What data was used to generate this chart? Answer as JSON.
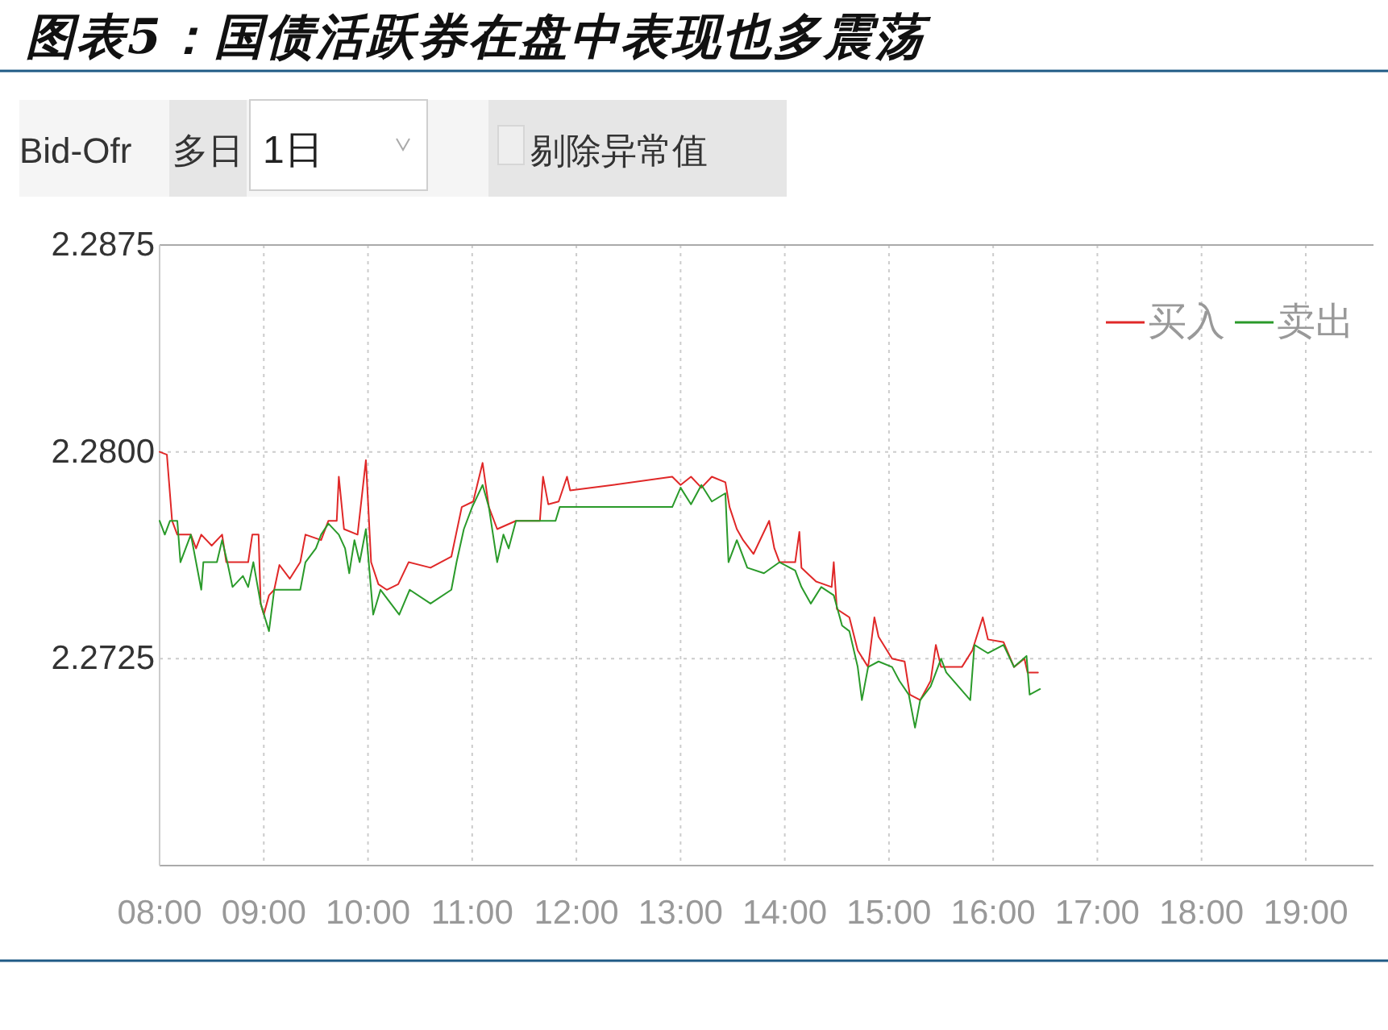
{
  "chart_data": {
    "type": "line",
    "title": "图表5：国债活跃券在盘中表现也多震荡",
    "annotations": [
      "Bid-Ofr",
      "多日",
      "1日",
      "剔除异常值"
    ],
    "xlim": [
      8,
      19.65
    ],
    "xticks": [
      {
        "value": 8,
        "label": "08:00"
      },
      {
        "value": 9,
        "label": "09:00"
      },
      {
        "value": 10,
        "label": "10:00"
      },
      {
        "value": 11,
        "label": "11:00"
      },
      {
        "value": 12,
        "label": "12:00"
      },
      {
        "value": 13,
        "label": "13:00"
      },
      {
        "value": 14,
        "label": "14:00"
      },
      {
        "value": 15,
        "label": "15:00"
      },
      {
        "value": 16,
        "label": "16:00"
      },
      {
        "value": 17,
        "label": "17:00"
      },
      {
        "value": 18,
        "label": "18:00"
      },
      {
        "value": 19,
        "label": "19:00"
      }
    ],
    "ylim": [
      2.265,
      2.2875
    ],
    "yticks": [
      2.2725,
      {
        "value": 2.28,
        "label": "2.2800"
      },
      2.2875
    ],
    "grid": true,
    "legend": "top right",
    "series": [
      {
        "name": "买入",
        "color": "#e02828",
        "x": [
          8.0,
          8.07,
          8.12,
          8.17,
          8.3,
          8.35,
          8.4,
          8.5,
          8.6,
          8.64,
          8.85,
          8.89,
          8.95,
          8.97,
          9.0,
          9.05,
          9.1,
          9.15,
          9.25,
          9.35,
          9.4,
          9.55,
          9.62,
          9.7,
          9.72,
          9.77,
          9.9,
          9.98,
          10.03,
          10.1,
          10.18,
          10.29,
          10.39,
          10.6,
          10.8,
          10.9,
          11.01,
          11.1,
          11.16,
          11.24,
          11.42,
          11.65,
          11.68,
          11.73,
          11.83,
          11.91,
          11.94,
          12.35,
          12.92,
          13.0,
          13.1,
          13.2,
          13.3,
          13.43,
          13.47,
          13.54,
          13.6,
          13.7,
          13.85,
          13.9,
          13.95,
          14.1,
          14.14,
          14.16,
          14.3,
          14.45,
          14.47,
          14.5,
          14.62,
          14.7,
          14.8,
          14.86,
          14.9,
          15.03,
          15.15,
          15.2,
          15.3,
          15.4,
          15.45,
          15.5,
          15.7,
          15.8,
          15.9,
          15.95,
          16.1,
          16.2,
          16.3,
          16.33,
          16.43
        ],
        "values": [
          2.28,
          2.2799,
          2.2775,
          2.277,
          2.277,
          2.2765,
          2.277,
          2.2766,
          2.277,
          2.276,
          2.276,
          2.277,
          2.277,
          2.2745,
          2.2741,
          2.2748,
          2.275,
          2.2759,
          2.2754,
          2.276,
          2.277,
          2.2768,
          2.2775,
          2.2775,
          2.2791,
          2.2772,
          2.277,
          2.2797,
          2.276,
          2.2752,
          2.275,
          2.2752,
          2.276,
          2.2758,
          2.2762,
          2.278,
          2.2782,
          2.2796,
          2.278,
          2.2772,
          2.2775,
          2.2775,
          2.2791,
          2.2781,
          2.2782,
          2.2791,
          2.2786,
          2.2788,
          2.2791,
          2.2788,
          2.2791,
          2.2787,
          2.2791,
          2.2789,
          2.278,
          2.2772,
          2.2768,
          2.2763,
          2.2775,
          2.2765,
          2.276,
          2.276,
          2.2771,
          2.2758,
          2.2753,
          2.2751,
          2.276,
          2.2743,
          2.274,
          2.2728,
          2.2722,
          2.274,
          2.2733,
          2.2725,
          2.2724,
          2.2712,
          2.271,
          2.2717,
          2.273,
          2.2722,
          2.2722,
          2.2728,
          2.274,
          2.2732,
          2.2731,
          2.2722,
          2.2725,
          2.272,
          2.272
        ]
      },
      {
        "name": "卖出",
        "color": "#2a9a2a",
        "x": [
          8.0,
          8.05,
          8.1,
          8.17,
          8.2,
          8.3,
          8.35,
          8.4,
          8.42,
          8.55,
          8.6,
          8.65,
          8.7,
          8.8,
          8.85,
          8.9,
          8.97,
          9.05,
          9.1,
          9.35,
          9.4,
          9.5,
          9.55,
          9.62,
          9.72,
          9.78,
          9.82,
          9.87,
          9.92,
          9.98,
          10.05,
          10.12,
          10.3,
          10.4,
          10.6,
          10.8,
          10.85,
          10.92,
          11.0,
          11.1,
          11.16,
          11.24,
          11.3,
          11.35,
          11.42,
          11.8,
          11.84,
          12.92,
          13.0,
          13.1,
          13.2,
          13.3,
          13.43,
          13.46,
          13.54,
          13.64,
          13.8,
          13.95,
          14.1,
          14.16,
          14.25,
          14.35,
          14.47,
          14.55,
          14.62,
          14.7,
          14.74,
          14.8,
          14.9,
          15.03,
          15.1,
          15.19,
          15.25,
          15.3,
          15.4,
          15.5,
          15.55,
          15.78,
          15.82,
          15.95,
          16.1,
          16.2,
          16.32,
          16.35,
          16.45
        ],
        "values": [
          2.2775,
          2.277,
          2.2775,
          2.2775,
          2.276,
          2.277,
          2.276,
          2.275,
          2.276,
          2.276,
          2.2768,
          2.276,
          2.2751,
          2.2755,
          2.2751,
          2.276,
          2.2745,
          2.2735,
          2.275,
          2.275,
          2.276,
          2.2765,
          2.277,
          2.2774,
          2.277,
          2.2765,
          2.2756,
          2.2768,
          2.276,
          2.2772,
          2.2741,
          2.275,
          2.2741,
          2.275,
          2.2745,
          2.275,
          2.276,
          2.2772,
          2.278,
          2.2788,
          2.278,
          2.276,
          2.277,
          2.2765,
          2.2775,
          2.2775,
          2.278,
          2.278,
          2.2787,
          2.2781,
          2.2788,
          2.2782,
          2.2785,
          2.276,
          2.2768,
          2.2758,
          2.2756,
          2.276,
          2.2757,
          2.2751,
          2.2745,
          2.2751,
          2.2748,
          2.2737,
          2.2735,
          2.2722,
          2.271,
          2.2722,
          2.2724,
          2.2722,
          2.2717,
          2.2712,
          2.27,
          2.271,
          2.2715,
          2.2725,
          2.272,
          2.271,
          2.273,
          2.2727,
          2.273,
          2.2722,
          2.2726,
          2.2712,
          2.2714
        ]
      }
    ]
  }
}
